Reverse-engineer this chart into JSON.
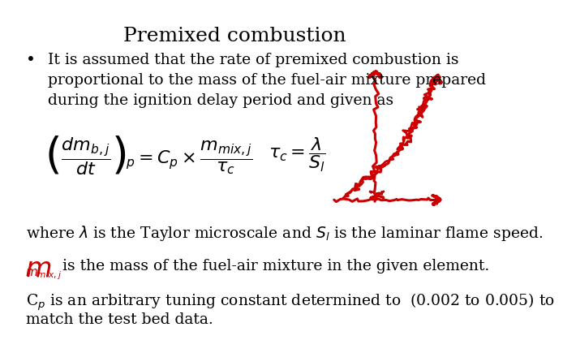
{
  "title": "Premixed combustion",
  "title_fontsize": 18,
  "background_color": "#ffffff",
  "text_color": "#000000",
  "red_color": "#cc0000",
  "bullet_line1": "It is assumed that the rate of premixed combustion is",
  "bullet_line2": "proportional to the mass of the fuel-air mixture prepared",
  "bullet_line3": "during the ignition delay period and given as",
  "where_normal": " laminar flame speed.",
  "mmix_text": " is the mass of the fuel-air mixture in the given element.",
  "cp_text1": " is an arbitrary tuning constant determined to  (0.002 to 0.005) to",
  "cp_text2": "match the test bed data.",
  "font_body": "DejaVu Serif",
  "body_fontsize": 13.5
}
